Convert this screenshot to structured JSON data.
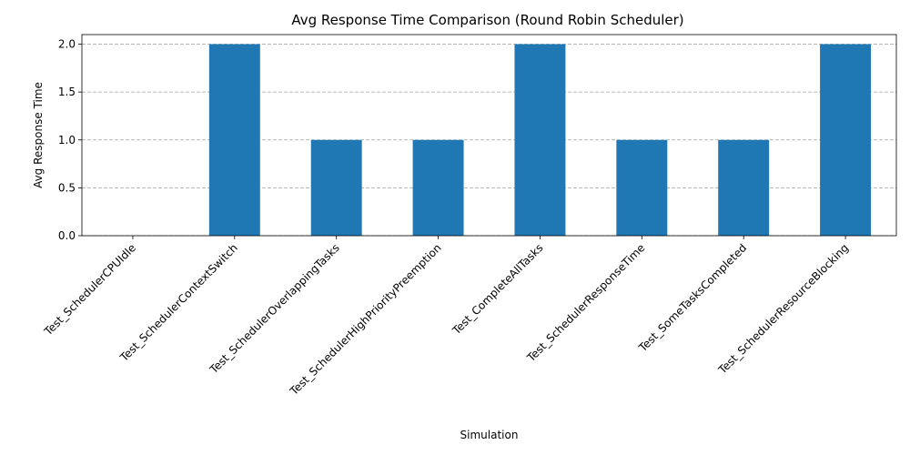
{
  "chart_data": {
    "type": "bar",
    "title": "Avg Response Time Comparison (Round Robin Scheduler)",
    "xlabel": "Simulation",
    "ylabel": "Avg Response Time",
    "categories": [
      "Test_SchedulerCPUIdle",
      "Test_SchedulerContextSwitch",
      "Test_SchedulerOverlappingTasks",
      "Test_SchedulerHighPriorityPreemption",
      "Test_CompleteAllTasks",
      "Test_SchedulerResponseTime",
      "Test_SomeTasksCompleted",
      "Test_SchedulerResourceBlocking"
    ],
    "values": [
      0,
      2,
      1,
      1,
      2,
      1,
      1,
      2
    ],
    "ylim": [
      0,
      2.1
    ],
    "yticks": [
      "0.0",
      "0.5",
      "1.0",
      "1.5",
      "2.0"
    ],
    "grid": "y-dashed",
    "bar_color": "#1f77b4"
  }
}
